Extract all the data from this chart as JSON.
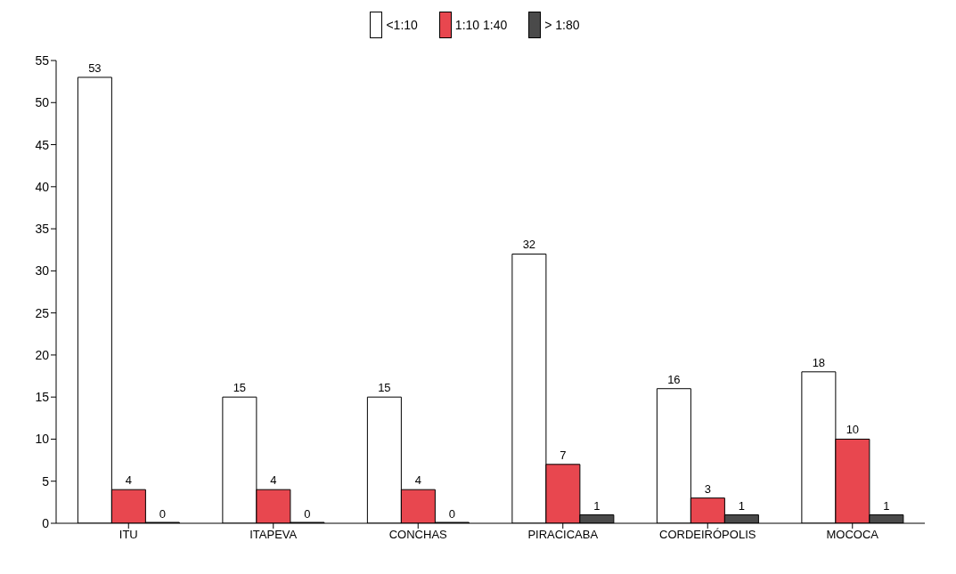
{
  "chart_data": {
    "type": "bar",
    "categories": [
      "ITU",
      "ITAPEVA",
      "CONCHAS",
      "PIRACICABA",
      "CORDEIRÓPOLIS",
      "MOCOCA"
    ],
    "series": [
      {
        "name": "<1:10",
        "color": "#ffffff",
        "values": [
          53,
          15,
          15,
          32,
          16,
          18
        ]
      },
      {
        "name": "1:10 1:40",
        "color": "#e8474f",
        "values": [
          4,
          4,
          4,
          7,
          3,
          10
        ]
      },
      {
        "name": "> 1:80",
        "color": "#4a4a4a",
        "values": [
          0,
          0,
          0,
          1,
          1,
          1
        ]
      }
    ],
    "ylim": [
      0,
      55
    ],
    "yticks": [
      0,
      5,
      10,
      15,
      20,
      25,
      30,
      35,
      40,
      45,
      50,
      55
    ],
    "grid": false,
    "legend": "top",
    "data_labels": true
  }
}
